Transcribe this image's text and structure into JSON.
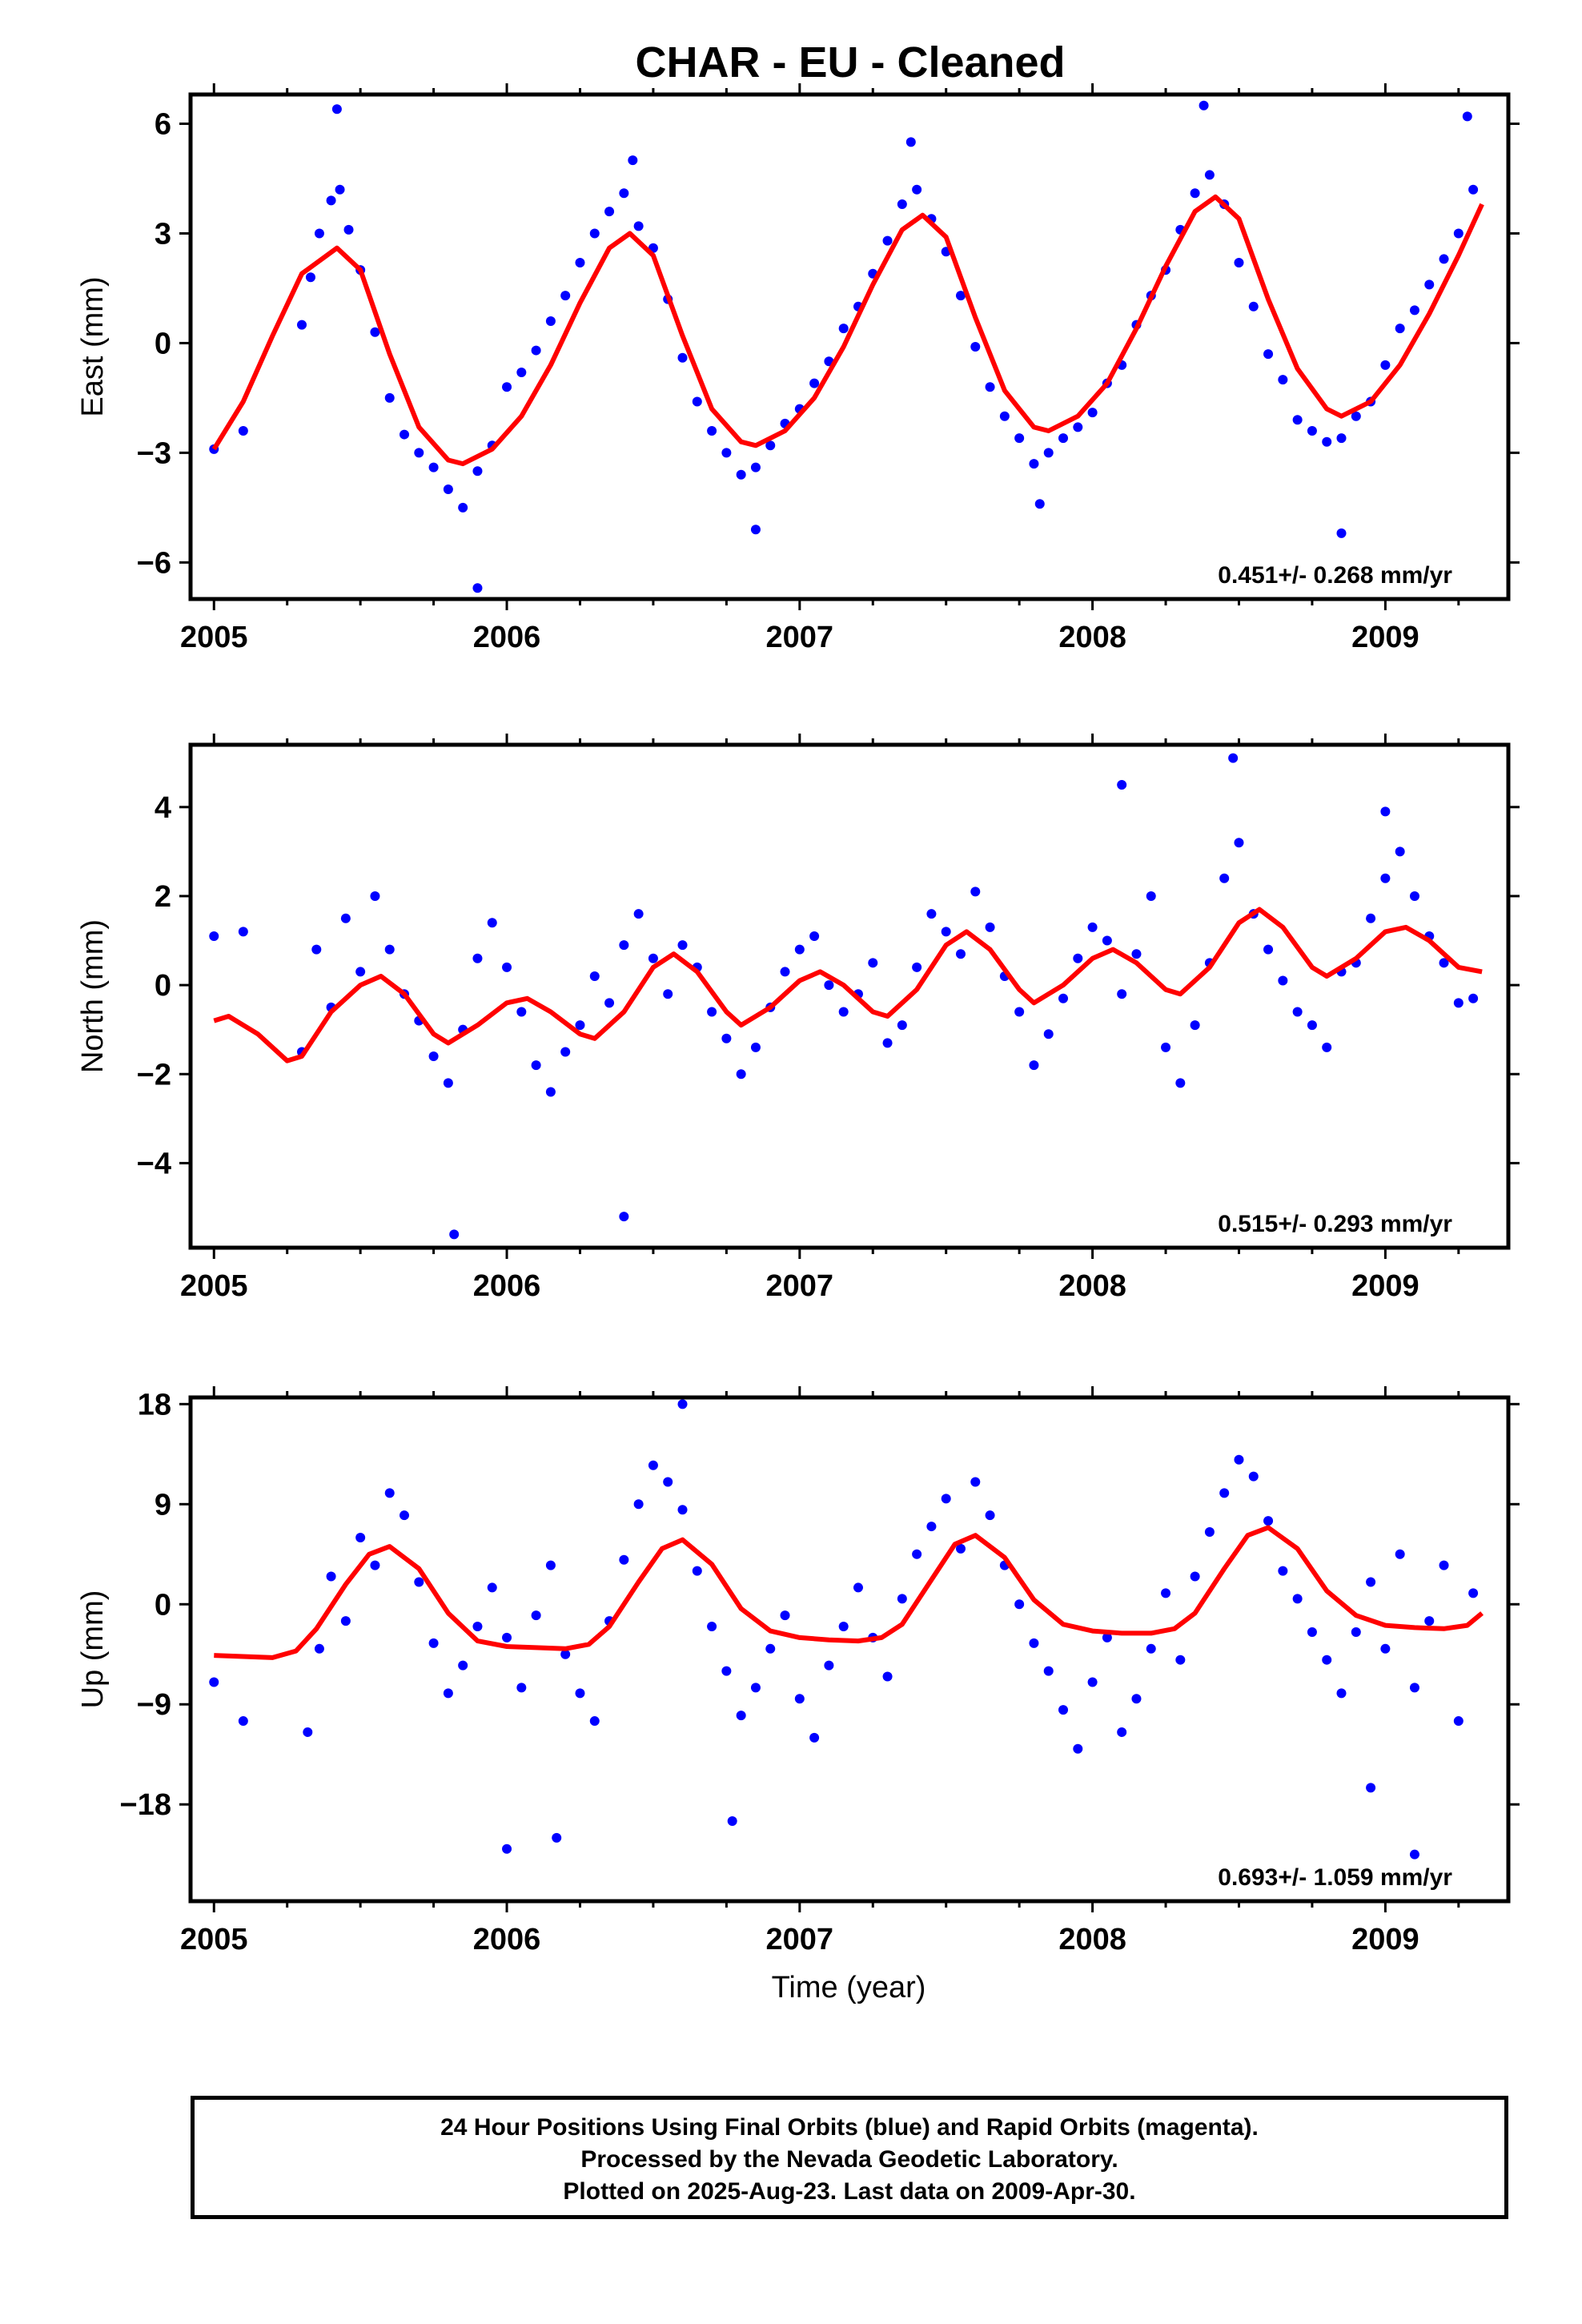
{
  "title": "CHAR  - EU - Cleaned",
  "xlabel": "Time (year)",
  "footer": {
    "line1": "24 Hour Positions Using Final Orbits (blue) and Rapid Orbits (magenta).",
    "line2": "Processed by the Nevada Geodetic Laboratory.",
    "line3": "Plotted on 2025-Aug-23. Last data on 2009-Apr-30."
  },
  "colors": {
    "points": "#0000ff",
    "fit": "#ff0000",
    "frame": "#000000"
  },
  "chart_data": [
    {
      "type": "scatter",
      "ylabel": "East (mm)",
      "rate_label": "0.451+/- 0.268 mm/yr",
      "xlim": [
        2004.92,
        2009.42
      ],
      "ylim": [
        -7.0,
        6.8
      ],
      "yticks": [
        6,
        3,
        0,
        -3,
        -6
      ],
      "yticklabels": [
        "6",
        "3",
        "0",
        "−3",
        "−6"
      ],
      "xticks": [
        2005,
        2006,
        2007,
        2008,
        2009
      ],
      "xticklabels": [
        "2005",
        "2006",
        "2007",
        "2008",
        "2009"
      ],
      "grid": false,
      "series": [
        {
          "kind": "scatter",
          "x": [
            2005.0,
            2005.1,
            2005.3,
            2005.33,
            2005.36,
            2005.4,
            2005.43,
            2005.46,
            2005.5,
            2005.55,
            2005.6,
            2005.65,
            2005.7,
            2005.75,
            2005.8,
            2005.85,
            2005.9,
            2005.95,
            2006.0,
            2006.05,
            2006.1,
            2006.15,
            2006.2,
            2006.25,
            2006.3,
            2006.35,
            2006.4,
            2006.45,
            2006.5,
            2006.55,
            2006.6,
            2006.65,
            2006.7,
            2006.75,
            2006.8,
            2006.85,
            2006.9,
            2006.95,
            2007.0,
            2007.05,
            2007.1,
            2007.15,
            2007.2,
            2007.25,
            2007.3,
            2007.35,
            2007.4,
            2007.45,
            2007.5,
            2007.55,
            2007.6,
            2007.65,
            2007.7,
            2007.75,
            2007.8,
            2007.85,
            2007.9,
            2007.95,
            2008.0,
            2008.05,
            2008.1,
            2008.15,
            2008.2,
            2008.25,
            2008.3,
            2008.35,
            2008.4,
            2008.45,
            2008.5,
            2008.55,
            2008.6,
            2008.65,
            2008.7,
            2008.75,
            2008.8,
            2008.85,
            2008.9,
            2008.95,
            2009.0,
            2009.05,
            2009.1,
            2009.15,
            2009.2,
            2009.25,
            2009.3,
            2005.42,
            2006.43,
            2007.38,
            2008.38,
            2005.9,
            2006.85,
            2007.82,
            2008.85,
            2009.28
          ],
          "y": [
            -2.9,
            -2.4,
            0.5,
            1.8,
            3.0,
            3.9,
            4.2,
            3.1,
            2.0,
            0.3,
            -1.5,
            -2.5,
            -3.0,
            -3.4,
            -4.0,
            -4.5,
            -3.5,
            -2.8,
            -1.2,
            -0.8,
            -0.2,
            0.6,
            1.3,
            2.2,
            3.0,
            3.6,
            4.1,
            3.2,
            2.6,
            1.2,
            -0.4,
            -1.6,
            -2.4,
            -3.0,
            -3.6,
            -3.4,
            -2.8,
            -2.2,
            -1.8,
            -1.1,
            -0.5,
            0.4,
            1.0,
            1.9,
            2.8,
            3.8,
            4.2,
            3.4,
            2.5,
            1.3,
            -0.1,
            -1.2,
            -2.0,
            -2.6,
            -3.3,
            -3.0,
            -2.6,
            -2.3,
            -1.9,
            -1.1,
            -0.6,
            0.5,
            1.3,
            2.0,
            3.1,
            4.1,
            4.6,
            3.8,
            2.2,
            1.0,
            -0.3,
            -1.0,
            -2.1,
            -2.4,
            -2.7,
            -2.6,
            -2.0,
            -1.6,
            -0.6,
            0.4,
            0.9,
            1.6,
            2.3,
            3.0,
            4.2,
            6.4,
            5.0,
            5.5,
            6.5,
            -6.7,
            -5.1,
            -4.4,
            -5.2,
            6.2
          ]
        },
        {
          "kind": "line",
          "x": [
            2005.0,
            2005.1,
            2005.2,
            2005.3,
            2005.42,
            2005.5,
            2005.6,
            2005.7,
            2005.8,
            2005.85,
            2005.95,
            2006.05,
            2006.15,
            2006.25,
            2006.35,
            2006.42,
            2006.5,
            2006.6,
            2006.7,
            2006.8,
            2006.85,
            2006.95,
            2007.05,
            2007.15,
            2007.25,
            2007.35,
            2007.42,
            2007.5,
            2007.6,
            2007.7,
            2007.8,
            2007.85,
            2007.95,
            2008.05,
            2008.15,
            2008.25,
            2008.35,
            2008.42,
            2008.5,
            2008.6,
            2008.7,
            2008.8,
            2008.85,
            2008.95,
            2009.05,
            2009.15,
            2009.25,
            2009.33
          ],
          "y": [
            -2.9,
            -1.6,
            0.2,
            1.9,
            2.6,
            2.0,
            -0.3,
            -2.3,
            -3.2,
            -3.3,
            -2.9,
            -2.0,
            -0.6,
            1.1,
            2.6,
            3.0,
            2.4,
            0.2,
            -1.8,
            -2.7,
            -2.8,
            -2.4,
            -1.5,
            -0.1,
            1.6,
            3.1,
            3.5,
            2.9,
            0.7,
            -1.3,
            -2.3,
            -2.4,
            -2.0,
            -1.1,
            0.4,
            2.1,
            3.6,
            4.0,
            3.4,
            1.2,
            -0.7,
            -1.8,
            -2.0,
            -1.6,
            -0.6,
            0.8,
            2.4,
            3.8
          ]
        }
      ]
    },
    {
      "type": "scatter",
      "ylabel": "North (mm)",
      "rate_label": "0.515+/- 0.293 mm/yr",
      "xlim": [
        2004.92,
        2009.42
      ],
      "ylim": [
        -5.9,
        5.4
      ],
      "yticks": [
        4,
        2,
        0,
        -2,
        -4
      ],
      "yticklabels": [
        "4",
        "2",
        "0",
        "−2",
        "−4"
      ],
      "xticks": [
        2005,
        2006,
        2007,
        2008,
        2009
      ],
      "xticklabels": [
        "2005",
        "2006",
        "2007",
        "2008",
        "2009"
      ],
      "grid": false,
      "series": [
        {
          "kind": "scatter",
          "x": [
            2005.0,
            2005.1,
            2005.3,
            2005.35,
            2005.4,
            2005.45,
            2005.5,
            2005.55,
            2005.6,
            2005.65,
            2005.7,
            2005.75,
            2005.8,
            2005.85,
            2005.9,
            2005.95,
            2006.0,
            2006.05,
            2006.1,
            2006.15,
            2006.2,
            2006.25,
            2006.3,
            2006.35,
            2006.4,
            2006.45,
            2006.5,
            2006.55,
            2006.6,
            2006.65,
            2006.7,
            2006.75,
            2006.8,
            2006.85,
            2006.9,
            2006.95,
            2007.0,
            2007.05,
            2007.1,
            2007.15,
            2007.2,
            2007.25,
            2007.3,
            2007.35,
            2007.4,
            2007.45,
            2007.5,
            2007.55,
            2007.6,
            2007.65,
            2007.7,
            2007.75,
            2007.8,
            2007.85,
            2007.9,
            2007.95,
            2008.0,
            2008.05,
            2008.1,
            2008.15,
            2008.2,
            2008.25,
            2008.3,
            2008.35,
            2008.4,
            2008.45,
            2008.5,
            2008.55,
            2008.6,
            2008.65,
            2008.7,
            2008.75,
            2008.8,
            2008.85,
            2008.9,
            2008.95,
            2009.0,
            2009.05,
            2009.1,
            2009.15,
            2009.2,
            2009.25,
            2009.3,
            2005.82,
            2006.4,
            2008.48,
            2008.1,
            2009.0
          ],
          "y": [
            1.1,
            1.2,
            -1.5,
            0.8,
            -0.5,
            1.5,
            0.3,
            2.0,
            0.8,
            -0.2,
            -0.8,
            -1.6,
            -2.2,
            -1.0,
            0.6,
            1.4,
            0.4,
            -0.6,
            -1.8,
            -2.4,
            -1.5,
            -0.9,
            0.2,
            -0.4,
            0.9,
            1.6,
            0.6,
            -0.2,
            0.9,
            0.4,
            -0.6,
            -1.2,
            -2.0,
            -1.4,
            -0.5,
            0.3,
            0.8,
            1.1,
            0.0,
            -0.6,
            -0.2,
            0.5,
            -1.3,
            -0.9,
            0.4,
            1.6,
            1.2,
            0.7,
            2.1,
            1.3,
            0.2,
            -0.6,
            -1.8,
            -1.1,
            -0.3,
            0.6,
            1.3,
            1.0,
            -0.2,
            0.7,
            2.0,
            -1.4,
            -2.2,
            -0.9,
            0.5,
            2.4,
            3.2,
            1.6,
            0.8,
            0.1,
            -0.6,
            -0.9,
            -1.4,
            0.3,
            0.5,
            1.5,
            2.4,
            3.0,
            2.0,
            1.1,
            0.5,
            -0.4,
            -0.3,
            -5.6,
            -5.2,
            5.1,
            4.5,
            3.9
          ]
        },
        {
          "kind": "line",
          "x": [
            2005.0,
            2005.05,
            2005.15,
            2005.25,
            2005.3,
            2005.4,
            2005.5,
            2005.57,
            2005.65,
            2005.75,
            2005.8,
            2005.9,
            2006.0,
            2006.07,
            2006.15,
            2006.25,
            2006.3,
            2006.4,
            2006.5,
            2006.57,
            2006.65,
            2006.75,
            2006.8,
            2006.9,
            2007.0,
            2007.07,
            2007.15,
            2007.25,
            2007.3,
            2007.4,
            2007.5,
            2007.57,
            2007.65,
            2007.75,
            2007.8,
            2007.9,
            2008.0,
            2008.07,
            2008.15,
            2008.25,
            2008.3,
            2008.4,
            2008.5,
            2008.57,
            2008.65,
            2008.75,
            2008.8,
            2008.9,
            2009.0,
            2009.07,
            2009.15,
            2009.25,
            2009.33
          ],
          "y": [
            -0.8,
            -0.7,
            -1.1,
            -1.7,
            -1.6,
            -0.6,
            0.0,
            0.2,
            -0.2,
            -1.1,
            -1.3,
            -0.9,
            -0.4,
            -0.3,
            -0.6,
            -1.1,
            -1.2,
            -0.6,
            0.4,
            0.7,
            0.3,
            -0.6,
            -0.9,
            -0.5,
            0.1,
            0.3,
            0.0,
            -0.6,
            -0.7,
            -0.1,
            0.9,
            1.2,
            0.8,
            -0.1,
            -0.4,
            0.0,
            0.6,
            0.8,
            0.5,
            -0.1,
            -0.2,
            0.4,
            1.4,
            1.7,
            1.3,
            0.4,
            0.2,
            0.6,
            1.2,
            1.3,
            1.0,
            0.4,
            0.3
          ]
        }
      ]
    },
    {
      "type": "scatter",
      "ylabel": "Up (mm)",
      "rate_label": "0.693+/- 1.059 mm/yr",
      "xlim": [
        2004.92,
        2009.42
      ],
      "ylim": [
        -26.7,
        18.6
      ],
      "yticks": [
        18,
        9,
        0,
        -9,
        -18
      ],
      "yticklabels": [
        "18",
        "9",
        "0",
        "−9",
        "−18"
      ],
      "xticks": [
        2005,
        2006,
        2007,
        2008,
        2009
      ],
      "xticklabels": [
        "2005",
        "2006",
        "2007",
        "2008",
        "2009"
      ],
      "grid": false,
      "series": [
        {
          "kind": "scatter",
          "x": [
            2005.0,
            2005.1,
            2005.32,
            2005.36,
            2005.4,
            2005.45,
            2005.5,
            2005.55,
            2005.6,
            2005.65,
            2005.7,
            2005.75,
            2005.8,
            2005.85,
            2005.9,
            2005.95,
            2006.0,
            2006.05,
            2006.1,
            2006.15,
            2006.2,
            2006.25,
            2006.3,
            2006.35,
            2006.4,
            2006.45,
            2006.5,
            2006.55,
            2006.6,
            2006.65,
            2006.7,
            2006.75,
            2006.8,
            2006.85,
            2006.9,
            2006.95,
            2007.0,
            2007.05,
            2007.1,
            2007.15,
            2007.2,
            2007.25,
            2007.3,
            2007.35,
            2007.4,
            2007.45,
            2007.5,
            2007.55,
            2007.6,
            2007.65,
            2007.7,
            2007.75,
            2007.8,
            2007.85,
            2007.9,
            2007.95,
            2008.0,
            2008.05,
            2008.1,
            2008.15,
            2008.2,
            2008.25,
            2008.3,
            2008.35,
            2008.4,
            2008.45,
            2008.5,
            2008.55,
            2008.6,
            2008.65,
            2008.7,
            2008.75,
            2008.8,
            2008.85,
            2008.9,
            2008.95,
            2009.0,
            2009.05,
            2009.1,
            2009.15,
            2009.2,
            2009.25,
            2009.3,
            2006.0,
            2006.17,
            2006.77,
            2008.95,
            2009.1,
            2006.6
          ],
          "y": [
            -7.0,
            -10.5,
            -11.5,
            -4.0,
            2.5,
            -1.5,
            6.0,
            3.5,
            10.0,
            8.0,
            2.0,
            -3.5,
            -8.0,
            -5.5,
            -2.0,
            1.5,
            -3.0,
            -7.5,
            -1.0,
            3.5,
            -4.5,
            -8.0,
            -10.5,
            -1.5,
            4.0,
            9.0,
            12.5,
            11.0,
            8.5,
            3.0,
            -2.0,
            -6.0,
            -10.0,
            -7.5,
            -4.0,
            -1.0,
            -8.5,
            -12.0,
            -5.5,
            -2.0,
            1.5,
            -3.0,
            -6.5,
            0.5,
            4.5,
            7.0,
            9.5,
            5.0,
            11.0,
            8.0,
            3.5,
            0.0,
            -3.5,
            -6.0,
            -9.5,
            -13.0,
            -7.0,
            -3.0,
            -11.5,
            -8.5,
            -4.0,
            1.0,
            -5.0,
            2.5,
            6.5,
            10.0,
            13.0,
            11.5,
            7.5,
            3.0,
            0.5,
            -2.5,
            -5.0,
            -8.0,
            -2.5,
            2.0,
            -4.0,
            4.5,
            -7.5,
            -1.5,
            3.5,
            -10.5,
            1.0,
            -22.0,
            -21.0,
            -19.5,
            -16.5,
            -22.5,
            18.0
          ]
        },
        {
          "kind": "line",
          "x": [
            2005.0,
            2005.1,
            2005.2,
            2005.28,
            2005.35,
            2005.45,
            2005.53,
            2005.6,
            2005.7,
            2005.8,
            2005.9,
            2006.0,
            2006.1,
            2006.2,
            2006.28,
            2006.35,
            2006.45,
            2006.53,
            2006.6,
            2006.7,
            2006.8,
            2006.9,
            2007.0,
            2007.1,
            2007.2,
            2007.28,
            2007.35,
            2007.45,
            2007.53,
            2007.6,
            2007.7,
            2007.8,
            2007.9,
            2008.0,
            2008.1,
            2008.2,
            2008.28,
            2008.35,
            2008.45,
            2008.53,
            2008.6,
            2008.7,
            2008.8,
            2008.9,
            2009.0,
            2009.1,
            2009.2,
            2009.28,
            2009.33
          ],
          "y": [
            -4.6,
            -4.7,
            -4.8,
            -4.2,
            -2.2,
            1.8,
            4.5,
            5.2,
            3.2,
            -0.8,
            -3.3,
            -3.8,
            -3.9,
            -4.0,
            -3.6,
            -2.0,
            2.0,
            5.0,
            5.8,
            3.6,
            -0.4,
            -2.4,
            -3.0,
            -3.2,
            -3.3,
            -3.0,
            -1.8,
            2.2,
            5.4,
            6.2,
            4.2,
            0.4,
            -1.8,
            -2.4,
            -2.6,
            -2.6,
            -2.2,
            -0.8,
            3.2,
            6.2,
            6.9,
            5.0,
            1.2,
            -1.0,
            -1.9,
            -2.1,
            -2.2,
            -1.9,
            -0.8
          ]
        }
      ]
    }
  ]
}
